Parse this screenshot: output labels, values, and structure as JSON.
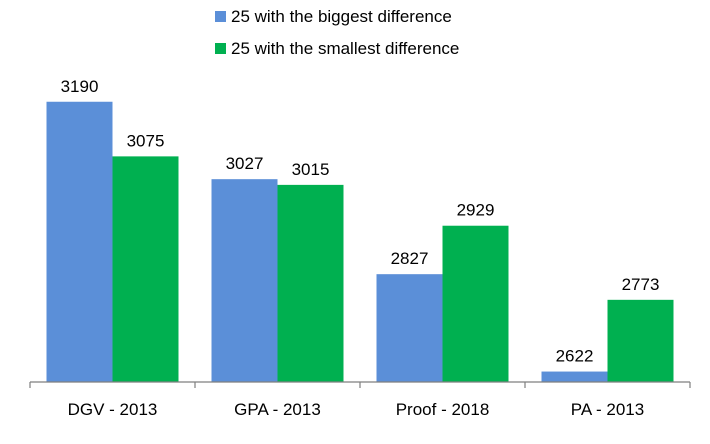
{
  "chart_data": {
    "type": "bar",
    "categories": [
      "DGV - 2013",
      "GPA - 2013",
      "Proof - 2018",
      "PA - 2013"
    ],
    "series": [
      {
        "name": "25 with the biggest difference",
        "values": [
          3190,
          3027,
          2827,
          2622
        ],
        "color": "#5b8fd8"
      },
      {
        "name": "25 with the smallest difference",
        "values": [
          3075,
          3015,
          2929,
          2773
        ],
        "color": "#00b050"
      }
    ],
    "title": "",
    "xlabel": "",
    "ylabel": "",
    "ylim": [
      2600,
      3200
    ],
    "grid": false,
    "legend_position": "top"
  }
}
